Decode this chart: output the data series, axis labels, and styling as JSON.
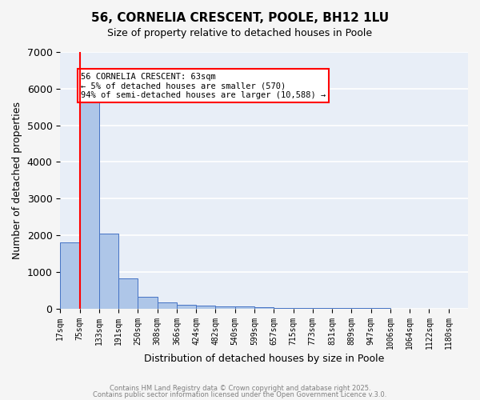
{
  "title": "56, CORNELIA CRESCENT, POOLE, BH12 1LU",
  "subtitle": "Size of property relative to detached houses in Poole",
  "xlabel": "Distribution of detached houses by size in Poole",
  "ylabel": "Number of detached properties",
  "bar_color": "#aec6e8",
  "bar_edge_color": "#4472c4",
  "background_color": "#e8eef7",
  "grid_color": "#ffffff",
  "bins": [
    17,
    75,
    133,
    191,
    250,
    308,
    366,
    424,
    482,
    540,
    599,
    657,
    715,
    773,
    831,
    889,
    947,
    1006,
    1064,
    1122,
    1180
  ],
  "bin_labels": [
    "17sqm",
    "75sqm",
    "133sqm",
    "191sqm",
    "250sqm",
    "308sqm",
    "366sqm",
    "424sqm",
    "482sqm",
    "540sqm",
    "599sqm",
    "657sqm",
    "715sqm",
    "773sqm",
    "831sqm",
    "889sqm",
    "947sqm",
    "1006sqm",
    "1064sqm",
    "1122sqm",
    "1180sqm"
  ],
  "values": [
    1800,
    5800,
    2050,
    820,
    320,
    175,
    100,
    80,
    50,
    50,
    30,
    20,
    15,
    10,
    8,
    5,
    3,
    2,
    1,
    1
  ],
  "ylim": [
    0,
    7000
  ],
  "red_line_x": 0,
  "property_sqm": 63,
  "annotation_title": "56 CORNELIA CRESCENT: 63sqm",
  "annotation_line1": "← 5% of detached houses are smaller (570)",
  "annotation_line2": "94% of semi-detached houses are larger (10,588) →",
  "footer_line1": "Contains HM Land Registry data © Crown copyright and database right 2025.",
  "footer_line2": "Contains public sector information licensed under the Open Government Licence v.3.0.",
  "yticks": [
    0,
    1000,
    2000,
    3000,
    4000,
    5000,
    6000,
    7000
  ]
}
